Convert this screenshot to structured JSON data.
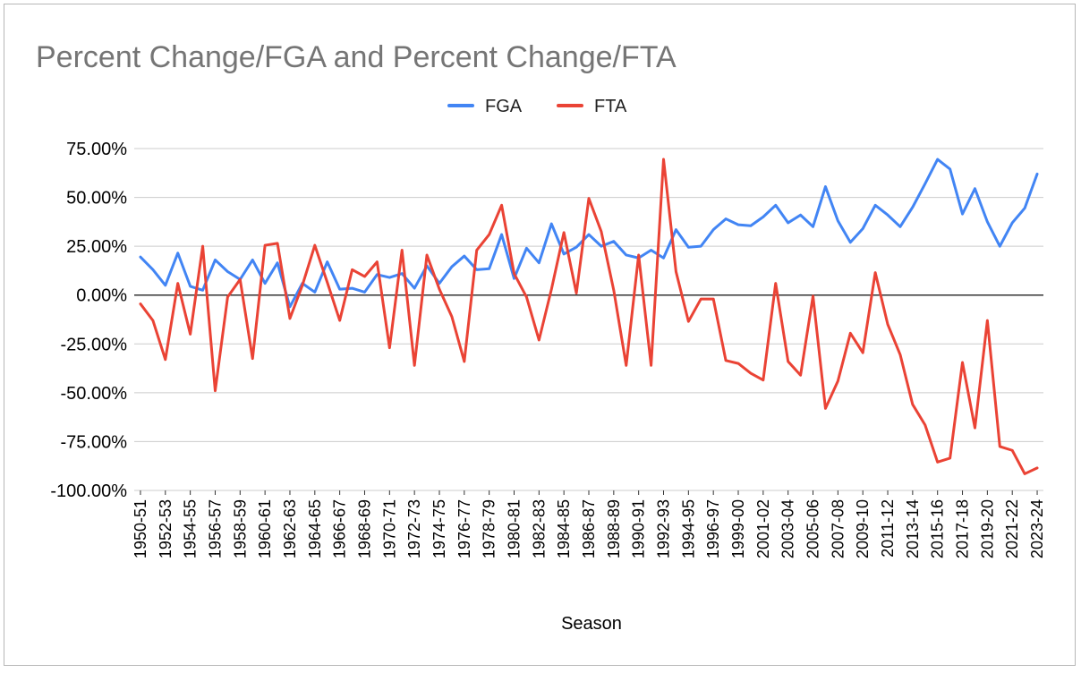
{
  "chart_data": {
    "type": "line",
    "title": "Percent Change/FGA and Percent Change/FTA",
    "xlabel": "Season",
    "ylabel": "",
    "ylim": [
      -100,
      75
    ],
    "yticks": [
      -100,
      -75,
      -50,
      -25,
      0,
      25,
      50,
      75
    ],
    "ytick_labels": [
      "-100.00%",
      "-75.00%",
      "-50.00%",
      "-25.00%",
      "0.00%",
      "25.00%",
      "50.00%",
      "75.00%"
    ],
    "grid": true,
    "legend_position": "top-center",
    "categories": [
      "1950-51",
      "1951-52",
      "1952-53",
      "1953-54",
      "1954-55",
      "1955-56",
      "1956-57",
      "1957-58",
      "1958-59",
      "1959-60",
      "1960-61",
      "1961-62",
      "1962-63",
      "1963-64",
      "1964-65",
      "1965-66",
      "1966-67",
      "1967-68",
      "1968-69",
      "1969-70",
      "1970-71",
      "1971-72",
      "1972-73",
      "1973-74",
      "1974-75",
      "1975-76",
      "1976-77",
      "1977-78",
      "1978-79",
      "1979-80",
      "1980-81",
      "1981-82",
      "1982-83",
      "1983-84",
      "1984-85",
      "1985-86",
      "1986-87",
      "1987-88",
      "1988-89",
      "1989-90",
      "1990-91",
      "1991-92",
      "1992-93",
      "1993-94",
      "1994-95",
      "1995-96",
      "1996-97",
      "1997-98",
      "1999-00",
      "2000-01",
      "2001-02",
      "2002-03",
      "2003-04",
      "2004-05",
      "2005-06",
      "2006-07",
      "2007-08",
      "2008-09",
      "2009-10",
      "2010-11",
      "2011-12",
      "2012-13",
      "2013-14",
      "2014-15",
      "2015-16",
      "2016-17",
      "2017-18",
      "2018-19",
      "2019-20",
      "2020-21",
      "2021-22",
      "2022-23",
      "2023-24"
    ],
    "xtick_labels": [
      "1950-51",
      "1952-53",
      "1954-55",
      "1956-57",
      "1958-59",
      "1960-61",
      "1962-63",
      "1964-65",
      "1966-67",
      "1968-69",
      "1970-71",
      "1972-73",
      "1974-75",
      "1976-77",
      "1978-79",
      "1980-81",
      "1982-83",
      "1984-85",
      "1986-87",
      "1988-89",
      "1990-91",
      "1992-93",
      "1994-95",
      "1996-97",
      "1999-00",
      "2001-02",
      "2003-04",
      "2005-06",
      "2007-08",
      "2009-10",
      "2011-12",
      "2013-14",
      "2015-16",
      "2017-18",
      "2019-20",
      "2021-22",
      "2023-24"
    ],
    "series": [
      {
        "name": "FGA",
        "color": "#4285F4",
        "values": [
          19.5,
          13,
          5,
          21.5,
          4.5,
          2.5,
          18,
          12,
          8,
          18,
          6,
          16.5,
          -6,
          6,
          1.5,
          17,
          3,
          3.5,
          1.5,
          10.5,
          9,
          11,
          3.5,
          15,
          6,
          14.5,
          20,
          13,
          13.5,
          31,
          8.5,
          24,
          16.5,
          36.5,
          21,
          24.5,
          31,
          25,
          27.5,
          20.5,
          19,
          23,
          19,
          33.5,
          24.5,
          25,
          33.5,
          39,
          36,
          35.5,
          40,
          46,
          37,
          41,
          35,
          55.5,
          38,
          27,
          34,
          46,
          41,
          35,
          45,
          57,
          69.5,
          64.5,
          41.5,
          54.5,
          37.5,
          25,
          37,
          44.5,
          62
        ]
      },
      {
        "name": "FTA",
        "color": "#EA4335",
        "values": [
          -4.5,
          -13,
          -33,
          6,
          -20,
          25,
          -49,
          -1,
          8,
          -32.5,
          25.5,
          26.5,
          -12,
          5,
          25.5,
          6.5,
          -13,
          13,
          9.5,
          17,
          -27,
          23,
          -36,
          20.5,
          3,
          -11,
          -34,
          23,
          31,
          46,
          11,
          -1,
          -23,
          3,
          32,
          1,
          49.5,
          32.5,
          2.5,
          -36,
          20.5,
          -36,
          69.5,
          12,
          -13.5,
          -2,
          -2,
          -33.5,
          -35,
          -40,
          -43.5,
          6,
          -34,
          -41,
          -0.5,
          -58,
          -44,
          -19.5,
          -29.5,
          11.5,
          -15,
          -30.5,
          -56,
          -66.5,
          -85.5,
          -83.5,
          -34.5,
          -68,
          -13,
          -77.5,
          -79.5,
          -91.5,
          -88.5
        ]
      }
    ]
  }
}
